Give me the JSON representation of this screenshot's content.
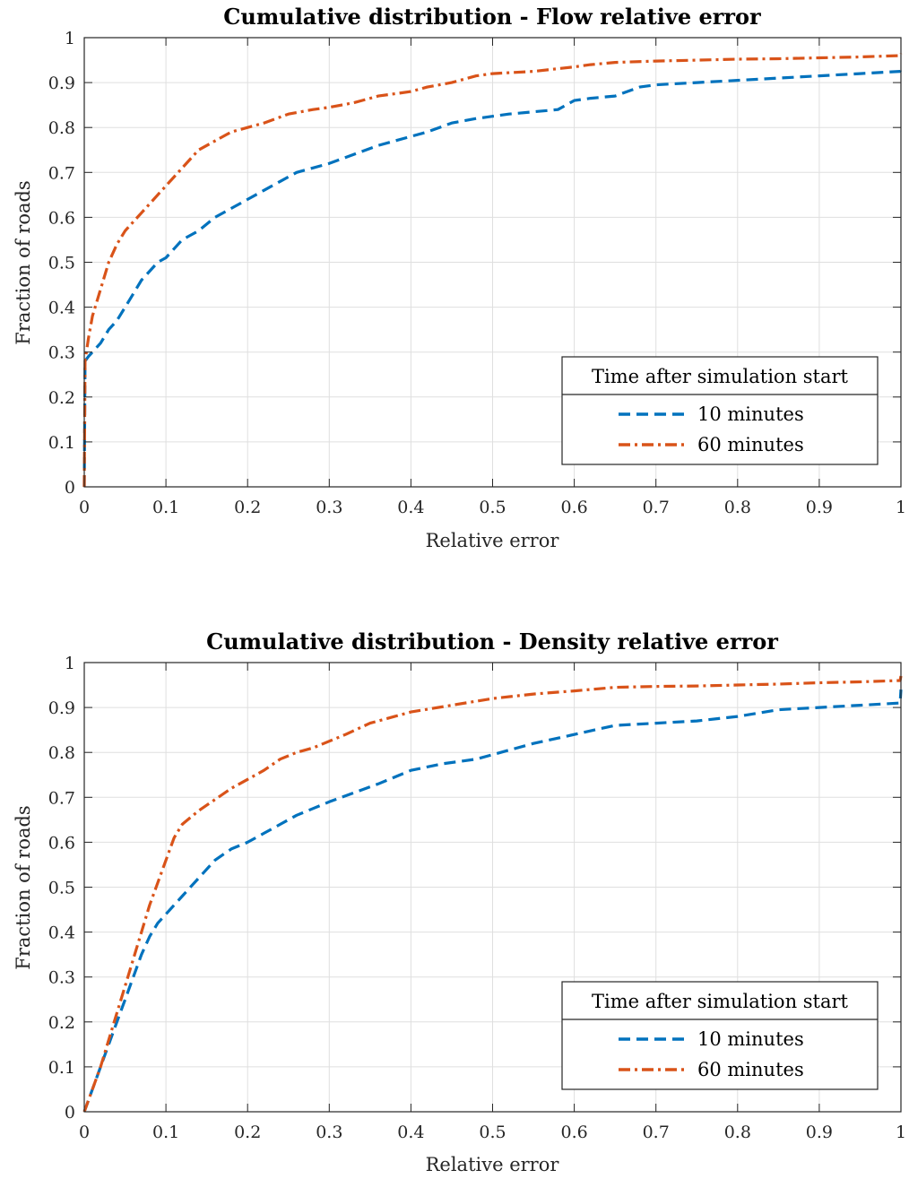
{
  "chart_data": [
    {
      "type": "line",
      "title": "Cumulative distribution - Flow relative error",
      "xlabel": "Relative error",
      "ylabel": "Fraction of roads",
      "xlim": [
        0,
        1
      ],
      "ylim": [
        0,
        1
      ],
      "xticks": [
        "0",
        "0.1",
        "0.2",
        "0.3",
        "0.4",
        "0.5",
        "0.6",
        "0.7",
        "0.8",
        "0.9",
        "1"
      ],
      "yticks": [
        "0",
        "0.1",
        "0.2",
        "0.3",
        "0.4",
        "0.5",
        "0.6",
        "0.7",
        "0.8",
        "0.9",
        "1"
      ],
      "grid": true,
      "legend": {
        "title": "Time after simulation start",
        "placement": "lower-right",
        "entries": [
          "10 minutes",
          "60 minutes"
        ]
      },
      "series": [
        {
          "name": "10 minutes",
          "color": "#0072BD",
          "style": "dashed",
          "x": [
            0,
            0.001,
            0.005,
            0.01,
            0.02,
            0.03,
            0.04,
            0.05,
            0.06,
            0.07,
            0.08,
            0.09,
            0.1,
            0.12,
            0.14,
            0.16,
            0.18,
            0.2,
            0.22,
            0.24,
            0.26,
            0.28,
            0.3,
            0.33,
            0.36,
            0.4,
            0.42,
            0.45,
            0.48,
            0.5,
            0.52,
            0.55,
            0.58,
            0.6,
            0.62,
            0.65,
            0.68,
            0.7,
            0.75,
            0.8,
            0.85,
            0.9,
            0.95,
            0.999,
            1.0
          ],
          "y": [
            0,
            0.28,
            0.29,
            0.3,
            0.32,
            0.35,
            0.37,
            0.4,
            0.43,
            0.46,
            0.48,
            0.5,
            0.51,
            0.55,
            0.57,
            0.6,
            0.62,
            0.64,
            0.66,
            0.68,
            0.7,
            0.71,
            0.72,
            0.74,
            0.76,
            0.78,
            0.79,
            0.81,
            0.82,
            0.825,
            0.83,
            0.835,
            0.84,
            0.86,
            0.865,
            0.87,
            0.89,
            0.895,
            0.9,
            0.905,
            0.91,
            0.915,
            0.92,
            0.925,
            0.94
          ]
        },
        {
          "name": "60 minutes",
          "color": "#D95319",
          "style": "dash-dot",
          "x": [
            0,
            0.001,
            0.005,
            0.01,
            0.02,
            0.03,
            0.04,
            0.05,
            0.06,
            0.07,
            0.08,
            0.09,
            0.1,
            0.12,
            0.14,
            0.16,
            0.18,
            0.2,
            0.22,
            0.25,
            0.28,
            0.3,
            0.33,
            0.36,
            0.4,
            0.42,
            0.45,
            0.48,
            0.5,
            0.55,
            0.6,
            0.62,
            0.65,
            0.7,
            0.75,
            0.8,
            0.85,
            0.9,
            0.95,
            0.999,
            1.0
          ],
          "y": [
            0,
            0.28,
            0.33,
            0.38,
            0.44,
            0.5,
            0.54,
            0.57,
            0.59,
            0.61,
            0.63,
            0.65,
            0.67,
            0.71,
            0.75,
            0.77,
            0.79,
            0.8,
            0.81,
            0.83,
            0.84,
            0.845,
            0.855,
            0.87,
            0.88,
            0.89,
            0.9,
            0.915,
            0.92,
            0.925,
            0.935,
            0.94,
            0.945,
            0.948,
            0.95,
            0.952,
            0.953,
            0.955,
            0.957,
            0.96,
            0.965
          ]
        }
      ]
    },
    {
      "type": "line",
      "title": "Cumulative distribution - Density relative error",
      "xlabel": "Relative error",
      "ylabel": "Fraction of roads",
      "xlim": [
        0,
        1
      ],
      "ylim": [
        0,
        1
      ],
      "xticks": [
        "0",
        "0.1",
        "0.2",
        "0.3",
        "0.4",
        "0.5",
        "0.6",
        "0.7",
        "0.8",
        "0.9",
        "1"
      ],
      "yticks": [
        "0",
        "0.1",
        "0.2",
        "0.3",
        "0.4",
        "0.5",
        "0.6",
        "0.7",
        "0.8",
        "0.9",
        "1"
      ],
      "grid": true,
      "legend": {
        "title": "Time after simulation start",
        "placement": "lower-right",
        "entries": [
          "10 minutes",
          "60 minutes"
        ]
      },
      "series": [
        {
          "name": "10 minutes",
          "color": "#0072BD",
          "style": "dashed",
          "x": [
            0,
            0.01,
            0.02,
            0.03,
            0.04,
            0.05,
            0.06,
            0.07,
            0.08,
            0.09,
            0.1,
            0.12,
            0.14,
            0.16,
            0.18,
            0.2,
            0.22,
            0.24,
            0.26,
            0.28,
            0.3,
            0.33,
            0.36,
            0.4,
            0.44,
            0.48,
            0.5,
            0.55,
            0.6,
            0.65,
            0.7,
            0.75,
            0.8,
            0.85,
            0.9,
            0.95,
            0.999,
            1.0
          ],
          "y": [
            0,
            0.05,
            0.1,
            0.15,
            0.2,
            0.25,
            0.3,
            0.35,
            0.39,
            0.42,
            0.44,
            0.48,
            0.52,
            0.56,
            0.585,
            0.6,
            0.62,
            0.64,
            0.66,
            0.675,
            0.69,
            0.71,
            0.73,
            0.76,
            0.775,
            0.785,
            0.795,
            0.82,
            0.84,
            0.86,
            0.865,
            0.87,
            0.88,
            0.895,
            0.9,
            0.905,
            0.91,
            0.94
          ]
        },
        {
          "name": "60 minutes",
          "color": "#D95319",
          "style": "dash-dot",
          "x": [
            0,
            0.01,
            0.02,
            0.03,
            0.04,
            0.05,
            0.06,
            0.07,
            0.08,
            0.09,
            0.1,
            0.11,
            0.12,
            0.14,
            0.16,
            0.18,
            0.2,
            0.22,
            0.24,
            0.26,
            0.28,
            0.3,
            0.32,
            0.35,
            0.38,
            0.4,
            0.45,
            0.5,
            0.55,
            0.6,
            0.65,
            0.7,
            0.75,
            0.8,
            0.85,
            0.9,
            0.95,
            0.999,
            1.0
          ],
          "y": [
            0,
            0.05,
            0.1,
            0.16,
            0.22,
            0.28,
            0.34,
            0.4,
            0.46,
            0.51,
            0.56,
            0.61,
            0.64,
            0.67,
            0.695,
            0.72,
            0.74,
            0.76,
            0.785,
            0.8,
            0.81,
            0.825,
            0.84,
            0.865,
            0.88,
            0.89,
            0.905,
            0.92,
            0.93,
            0.937,
            0.945,
            0.947,
            0.948,
            0.95,
            0.952,
            0.955,
            0.957,
            0.96,
            0.97
          ]
        }
      ]
    }
  ]
}
